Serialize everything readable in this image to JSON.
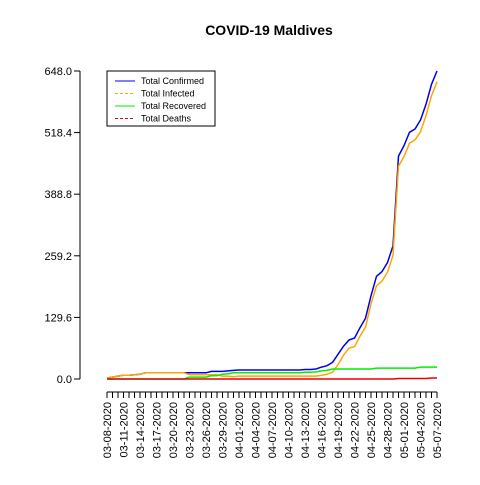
{
  "chart_data": {
    "type": "line",
    "title": "COVID-19 Maldives",
    "xlabel": "",
    "ylabel": "",
    "ylim": [
      0,
      648
    ],
    "yticks": [
      "0.0",
      "129.6",
      "259.2",
      "388.8",
      "518.4",
      "648.0"
    ],
    "xtick_labels": [
      "03-08-2020",
      "03-11-2020",
      "03-14-2020",
      "03-17-2020",
      "03-20-2020",
      "03-23-2020",
      "03-26-2020",
      "03-29-2020",
      "04-01-2020",
      "04-04-2020",
      "04-07-2020",
      "04-10-2020",
      "04-13-2020",
      "04-16-2020",
      "04-19-2020",
      "04-22-2020",
      "04-25-2020",
      "04-28-2020",
      "05-01-2020",
      "05-04-2020",
      "05-07-2020"
    ],
    "x": [
      "03-08-2020",
      "03-09-2020",
      "03-10-2020",
      "03-11-2020",
      "03-12-2020",
      "03-13-2020",
      "03-14-2020",
      "03-15-2020",
      "03-16-2020",
      "03-17-2020",
      "03-18-2020",
      "03-19-2020",
      "03-20-2020",
      "03-21-2020",
      "03-22-2020",
      "03-23-2020",
      "03-24-2020",
      "03-25-2020",
      "03-26-2020",
      "03-27-2020",
      "03-28-2020",
      "03-29-2020",
      "03-30-2020",
      "03-31-2020",
      "04-01-2020",
      "04-02-2020",
      "04-03-2020",
      "04-04-2020",
      "04-05-2020",
      "04-06-2020",
      "04-07-2020",
      "04-08-2020",
      "04-09-2020",
      "04-10-2020",
      "04-11-2020",
      "04-12-2020",
      "04-13-2020",
      "04-14-2020",
      "04-15-2020",
      "04-16-2020",
      "04-17-2020",
      "04-18-2020",
      "04-19-2020",
      "04-20-2020",
      "04-21-2020",
      "04-22-2020",
      "04-23-2020",
      "04-24-2020",
      "04-25-2020",
      "04-26-2020",
      "04-27-2020",
      "04-28-2020",
      "04-29-2020",
      "04-30-2020",
      "05-01-2020",
      "05-02-2020",
      "05-03-2020",
      "05-04-2020",
      "05-05-2020",
      "05-06-2020",
      "05-07-2020"
    ],
    "legend_position": "top-left",
    "legend_entries": [
      "Total Confirmed",
      "Total Infected",
      "Total Recovered",
      "Total Deaths"
    ],
    "series": [
      {
        "name": "Total Confirmed",
        "color": "#0000ee",
        "dash": "solid",
        "values": [
          2,
          4,
          6,
          8,
          8,
          9,
          10,
          13,
          13,
          13,
          13,
          13,
          13,
          13,
          13,
          13,
          13,
          13,
          13,
          16,
          16,
          16,
          17,
          18,
          19,
          19,
          19,
          19,
          19,
          19,
          19,
          19,
          19,
          19,
          19,
          19,
          20,
          20,
          21,
          25,
          28,
          35,
          52,
          69,
          82,
          86,
          108,
          128,
          175,
          216,
          226,
          245,
          280,
          469,
          491,
          519,
          526,
          545,
          578,
          620,
          648
        ]
      },
      {
        "name": "Total Infected",
        "color": "#ffa500",
        "dash": "dashed",
        "values": [
          2,
          4,
          6,
          8,
          8,
          9,
          10,
          13,
          13,
          13,
          13,
          13,
          13,
          13,
          13,
          9,
          9,
          9,
          9,
          9,
          9,
          6,
          6,
          5,
          6,
          6,
          6,
          6,
          6,
          6,
          6,
          6,
          6,
          6,
          6,
          6,
          6,
          6,
          6,
          8,
          10,
          14,
          30,
          50,
          65,
          68,
          90,
          109,
          158,
          196,
          206,
          225,
          260,
          448,
          468,
          496,
          503,
          520,
          554,
          596,
          625
        ]
      },
      {
        "name": "Total Recovered",
        "color": "#00ee00",
        "dash": "solid",
        "values": [
          0,
          0,
          0,
          0,
          0,
          0,
          0,
          0,
          0,
          0,
          0,
          0,
          0,
          0,
          0,
          4,
          4,
          4,
          4,
          7,
          7,
          10,
          11,
          13,
          13,
          13,
          13,
          13,
          13,
          13,
          13,
          13,
          13,
          13,
          13,
          13,
          14,
          14,
          15,
          17,
          18,
          21,
          21,
          21,
          21,
          21,
          21,
          21,
          21,
          23,
          23,
          23,
          23,
          23,
          23,
          23,
          23,
          25,
          25,
          25,
          25
        ]
      },
      {
        "name": "Total Deaths",
        "color": "#ee0000",
        "dash": "dashed",
        "values": [
          0,
          0,
          0,
          0,
          0,
          0,
          0,
          0,
          0,
          0,
          0,
          0,
          0,
          0,
          0,
          0,
          0,
          0,
          0,
          0,
          0,
          0,
          0,
          0,
          0,
          0,
          0,
          0,
          0,
          0,
          0,
          0,
          0,
          0,
          0,
          0,
          0,
          0,
          0,
          0,
          0,
          0,
          0,
          0,
          0,
          0,
          0,
          0,
          0,
          0,
          0,
          0,
          0,
          1,
          1,
          1,
          1,
          1,
          1,
          2,
          2
        ]
      }
    ]
  }
}
